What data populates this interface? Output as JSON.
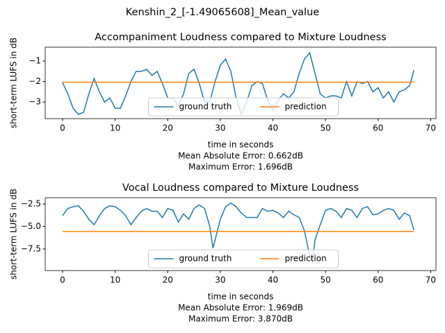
{
  "title": "Kenshin_2_[-1.49065608]_Mean_value",
  "chart_data": [
    {
      "type": "line",
      "title": "Accompaniment Loudness compared to Mixture Loudness",
      "xlabel": "time in seconds",
      "ylabel": "short-term LUFS in dB",
      "annotations": [
        "Mean Absolute Error: 0.662dB",
        "Maximum Error: 1.696dB"
      ],
      "xlim": [
        -3.3,
        71
      ],
      "xticks": [
        0,
        10,
        20,
        30,
        40,
        50,
        60,
        70
      ],
      "ylim": [
        -3.81,
        -0.32
      ],
      "yticks": [
        {
          "value": -3,
          "label": "−3"
        },
        {
          "value": -2,
          "label": "−2"
        },
        {
          "value": -1,
          "label": "−1"
        }
      ],
      "legend": "lower center",
      "series": [
        {
          "name": "ground truth",
          "color": "#1f77b4",
          "x": [
            0,
            1,
            2,
            3,
            4,
            5,
            6,
            7,
            8,
            9,
            10,
            11,
            12,
            13,
            14,
            15,
            16,
            17,
            18,
            19,
            20,
            21,
            22,
            23,
            24,
            25,
            26,
            27,
            28,
            29,
            30,
            31,
            32,
            33,
            34,
            35,
            36,
            37,
            38,
            39,
            40,
            41,
            42,
            43,
            44,
            45,
            46,
            47,
            48,
            49,
            50,
            51,
            52,
            53,
            54,
            55,
            56,
            57,
            58,
            59,
            60,
            61,
            62,
            63,
            64,
            65,
            66,
            66.8
          ],
          "values": [
            -2.05,
            -2.6,
            -3.3,
            -3.6,
            -3.5,
            -2.6,
            -1.85,
            -2.5,
            -3.0,
            -2.8,
            -3.3,
            -3.3,
            -2.7,
            -2.0,
            -1.5,
            -1.5,
            -1.4,
            -1.7,
            -1.5,
            -2.1,
            -2.8,
            -2.8,
            -3.2,
            -2.6,
            -1.6,
            -1.4,
            -2.1,
            -3.0,
            -3.0,
            -2.0,
            -1.2,
            -0.9,
            -1.5,
            -2.8,
            -3.6,
            -3.0,
            -2.2,
            -2.0,
            -2.1,
            -2.9,
            -3.4,
            -2.9,
            -2.6,
            -2.8,
            -2.5,
            -1.6,
            -0.9,
            -0.6,
            -1.6,
            -2.6,
            -2.8,
            -2.7,
            -2.7,
            -2.8,
            -2.0,
            -2.7,
            -2.0,
            -2.1,
            -2.0,
            -2.5,
            -2.3,
            -2.8,
            -2.5,
            -3.0,
            -2.5,
            -2.4,
            -2.2,
            -1.45
          ]
        },
        {
          "name": "prediction",
          "color": "#ff7f0e",
          "x": [
            0,
            66.8
          ],
          "values": [
            -2.03,
            -2.03
          ]
        }
      ]
    },
    {
      "type": "line",
      "title": "Vocal Loudness compared to Mixture Loudness",
      "xlabel": "time in seconds",
      "ylabel": "short-term LUFS in dB",
      "annotations": [
        "Mean Absolute Error: 1.969dB",
        "Maximum Error: 3.870dB"
      ],
      "xlim": [
        -3.3,
        71
      ],
      "xticks": [
        0,
        10,
        20,
        30,
        40,
        50,
        60,
        70
      ],
      "ylim": [
        -9.9,
        -1.8
      ],
      "yticks": [
        {
          "value": -7.5,
          "label": "−7.5"
        },
        {
          "value": -5,
          "label": "−5.0"
        },
        {
          "value": -2.5,
          "label": "−2.5"
        }
      ],
      "legend": "lower center",
      "series": [
        {
          "name": "ground truth",
          "color": "#1f77b4",
          "x": [
            0,
            1,
            2,
            3,
            4,
            5,
            6,
            7,
            8,
            9,
            10,
            11,
            12,
            13,
            14,
            15,
            16,
            17,
            18,
            19,
            20,
            21,
            22,
            23,
            24,
            25,
            26,
            27,
            28,
            28.6,
            29,
            30,
            31,
            32,
            33,
            34,
            35,
            36,
            37,
            38,
            39,
            40,
            41,
            42,
            43,
            44,
            45,
            46,
            47,
            47.5,
            48,
            49,
            50,
            51,
            52,
            53,
            54,
            55,
            56,
            57,
            58,
            59,
            60,
            61,
            62,
            63,
            64,
            65,
            66,
            66.8
          ],
          "values": [
            -3.8,
            -3.0,
            -2.8,
            -2.7,
            -3.3,
            -4.2,
            -4.8,
            -3.8,
            -3.0,
            -2.7,
            -2.8,
            -3.2,
            -3.8,
            -4.8,
            -4.0,
            -3.3,
            -3.0,
            -3.3,
            -3.3,
            -4.0,
            -3.0,
            -3.2,
            -4.5,
            -3.6,
            -4.2,
            -3.0,
            -2.6,
            -3.0,
            -5.0,
            -7.4,
            -6.5,
            -4.2,
            -2.8,
            -2.4,
            -2.8,
            -3.5,
            -4.0,
            -4.0,
            -4.0,
            -3.0,
            -3.3,
            -3.2,
            -3.5,
            -4.0,
            -3.3,
            -3.7,
            -4.0,
            -5.5,
            -8.3,
            -9.0,
            -6.5,
            -4.8,
            -3.2,
            -3.0,
            -3.3,
            -4.0,
            -3.0,
            -3.2,
            -4.0,
            -3.0,
            -2.8,
            -3.7,
            -3.6,
            -3.2,
            -3.0,
            -3.2,
            -4.2,
            -3.5,
            -3.8,
            -5.4
          ]
        },
        {
          "name": "prediction",
          "color": "#ff7f0e",
          "x": [
            0,
            66.8
          ],
          "values": [
            -5.55,
            -5.55
          ]
        }
      ]
    }
  ]
}
